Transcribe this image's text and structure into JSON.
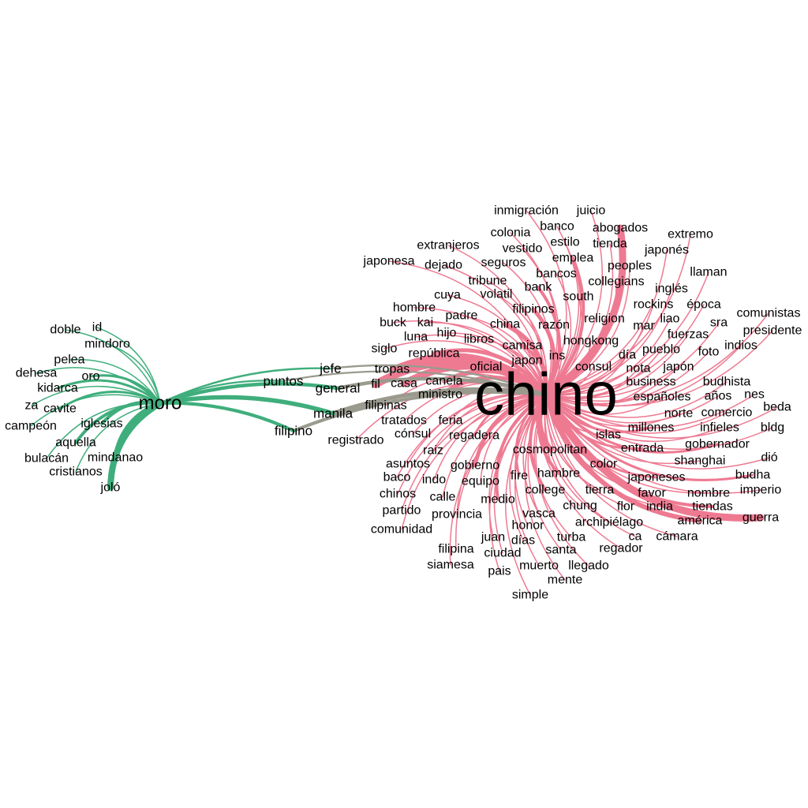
{
  "colors": {
    "chino_edge": "#ee7a92",
    "moro_edge": "#3fae7c",
    "shared_edge": "#9a9a8e",
    "label": "#000000",
    "background": "#ffffff"
  },
  "hubs": {
    "chino": "chino",
    "moro": "moro"
  },
  "shared_words": [
    "jefe",
    "puntos",
    "general",
    "manila",
    "filipino"
  ],
  "moro_words": [
    "doble",
    "id",
    "mindoro",
    "pelea",
    "dehesa",
    "oro",
    "kidarca",
    "za",
    "cavite",
    "campeón",
    "iglesias",
    "aquella",
    "bulacán",
    "mindanao",
    "cristianos",
    "joló"
  ],
  "chino_words": [
    "inmigración",
    "juicio",
    "banco",
    "abogados",
    "colonia",
    "extremo",
    "extranjeros",
    "vestido",
    "estilo",
    "tienda",
    "japonés",
    "japonesa",
    "dejado",
    "seguros",
    "emplea",
    "peoples",
    "bancos",
    "llaman",
    "tribune",
    "collegians",
    "bank",
    "inglés",
    "cuya",
    "volatil",
    "south",
    "hombre",
    "rockins",
    "época",
    "filipinos",
    "comunistas",
    "padre",
    "religion",
    "liao",
    "buck",
    "kai",
    "china",
    "razón",
    "mar",
    "sra",
    "presidente",
    "hijo",
    "luna",
    "libros",
    "fuerzas",
    "hongkong",
    "indios",
    "siglo",
    "camisa",
    "república",
    "pueblo",
    "ins",
    "día",
    "foto",
    "japon",
    "consul",
    "nota",
    "japón",
    "oficial",
    "tropas",
    "budhista",
    "business",
    "nes",
    "canela",
    "fil",
    "casa",
    "españoles",
    "años",
    "ministro",
    "beda",
    "filipinas",
    "norte",
    "comercio",
    "tratados",
    "feria",
    "millones",
    "infieles",
    "bldg",
    "cónsul",
    "islas",
    "regadera",
    "registrado",
    "gobernador",
    "entrada",
    "cosmopolitan",
    "raiz",
    "shanghai",
    "dió",
    "asuntos",
    "color",
    "gobierno",
    "budha",
    "baco",
    "fire",
    "indo",
    "hambre",
    "equipo",
    "japoneses",
    "imperio",
    "tierra",
    "chinos",
    "calle",
    "college",
    "favor",
    "nombre",
    "medio",
    "tiendas",
    "partido",
    "chung",
    "india",
    "provincia",
    "vasca",
    "flor",
    "archipiélago",
    "américa",
    "guerra",
    "comunidad",
    "honor",
    "juan",
    "turba",
    "días",
    "ca",
    "cámara",
    "filipina",
    "santa",
    "regador",
    "ciudad",
    "siamesa",
    "muerto",
    "llegado",
    "pais",
    "mente",
    "simple"
  ]
}
